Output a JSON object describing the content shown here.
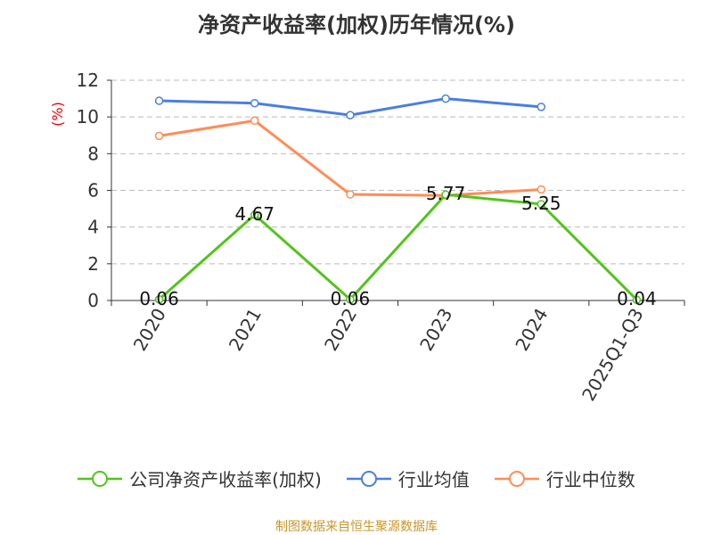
{
  "chart_data": {
    "type": "line",
    "title": "净资产收益率(加权)历年情况(%)",
    "ylabel": "(%)",
    "xlabel": "",
    "ylim": [
      0,
      12
    ],
    "yticks": [
      0,
      2,
      4,
      6,
      8,
      10,
      12
    ],
    "grid": true,
    "legend_position": "bottom",
    "categories": [
      "2020",
      "2021",
      "2022",
      "2023",
      "2024",
      "2025Q1-Q3"
    ],
    "series": [
      {
        "name": "公司净资产收益率(加权)",
        "color": "#52c41a",
        "values": [
          0.06,
          4.67,
          0.06,
          5.77,
          5.25,
          0.04
        ],
        "labels": [
          "0.06",
          "4.67",
          "0.06",
          "5.77",
          "5.25",
          "0.04"
        ]
      },
      {
        "name": "行业均值",
        "color": "#4a7ee0",
        "values": [
          10.88,
          10.75,
          10.1,
          11.0,
          10.55,
          null
        ]
      },
      {
        "name": "行业中位数",
        "color": "#ff8c55",
        "values": [
          8.97,
          9.8,
          5.78,
          5.72,
          6.05,
          null
        ]
      }
    ]
  },
  "footer": "制图数据来自恒生聚源数据库"
}
